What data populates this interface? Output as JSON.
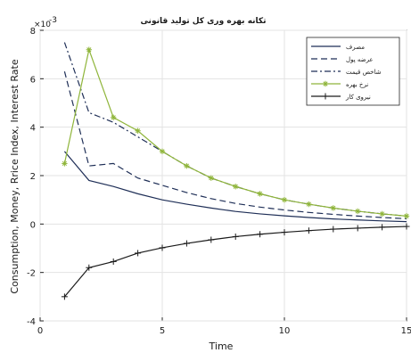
{
  "chart_data": {
    "type": "line",
    "title": "تکانه بهره وری کل تولید قانونی",
    "xlabel": "Time",
    "ylabel": "Consumption, Money, Rrice Index, Interest Rate",
    "y_exponent_base": "×10",
    "y_exponent_power": "-3",
    "xlim": [
      0,
      15
    ],
    "ylim": [
      -4,
      8
    ],
    "x_ticks": [
      "0",
      "5",
      "10",
      "15"
    ],
    "y_ticks": [
      "-4",
      "-2",
      "0",
      "2",
      "4",
      "6",
      "8"
    ],
    "grid": true,
    "legend_position": "top-right",
    "x": [
      1,
      2,
      3,
      4,
      5,
      6,
      7,
      8,
      9,
      10,
      11,
      12,
      13,
      14,
      15
    ],
    "series": [
      {
        "name": "مصرف",
        "style": "solid",
        "color": "#1f2f57",
        "values": [
          3.0,
          1.8,
          1.55,
          1.25,
          1.0,
          0.82,
          0.66,
          0.52,
          0.42,
          0.34,
          0.27,
          0.21,
          0.17,
          0.13,
          0.1
        ]
      },
      {
        "name": "عرضه پول",
        "style": "dashed",
        "color": "#1f2f57",
        "values": [
          6.3,
          2.4,
          2.5,
          1.9,
          1.6,
          1.3,
          1.05,
          0.85,
          0.7,
          0.58,
          0.48,
          0.4,
          0.33,
          0.27,
          0.22
        ]
      },
      {
        "name": "شاخص قیمت",
        "style": "dashdot",
        "color": "#1f2f57",
        "values": [
          7.5,
          4.6,
          4.2,
          3.6,
          3.0,
          2.4,
          1.9,
          1.55,
          1.25,
          1.0,
          0.82,
          0.66,
          0.53,
          0.42,
          0.33
        ]
      },
      {
        "name": "نرخ بهره",
        "style": "solid-star",
        "color": "#8fb53a",
        "values": [
          2.5,
          7.2,
          4.4,
          3.85,
          3.0,
          2.4,
          1.9,
          1.55,
          1.25,
          1.0,
          0.82,
          0.66,
          0.53,
          0.42,
          0.33
        ]
      },
      {
        "name": "نیروی کار",
        "style": "solid-plus",
        "color": "#1a1a1a",
        "values": [
          -3.0,
          -1.8,
          -1.55,
          -1.2,
          -0.98,
          -0.8,
          -0.65,
          -0.52,
          -0.42,
          -0.34,
          -0.27,
          -0.21,
          -0.17,
          -0.13,
          -0.1
        ]
      }
    ]
  }
}
